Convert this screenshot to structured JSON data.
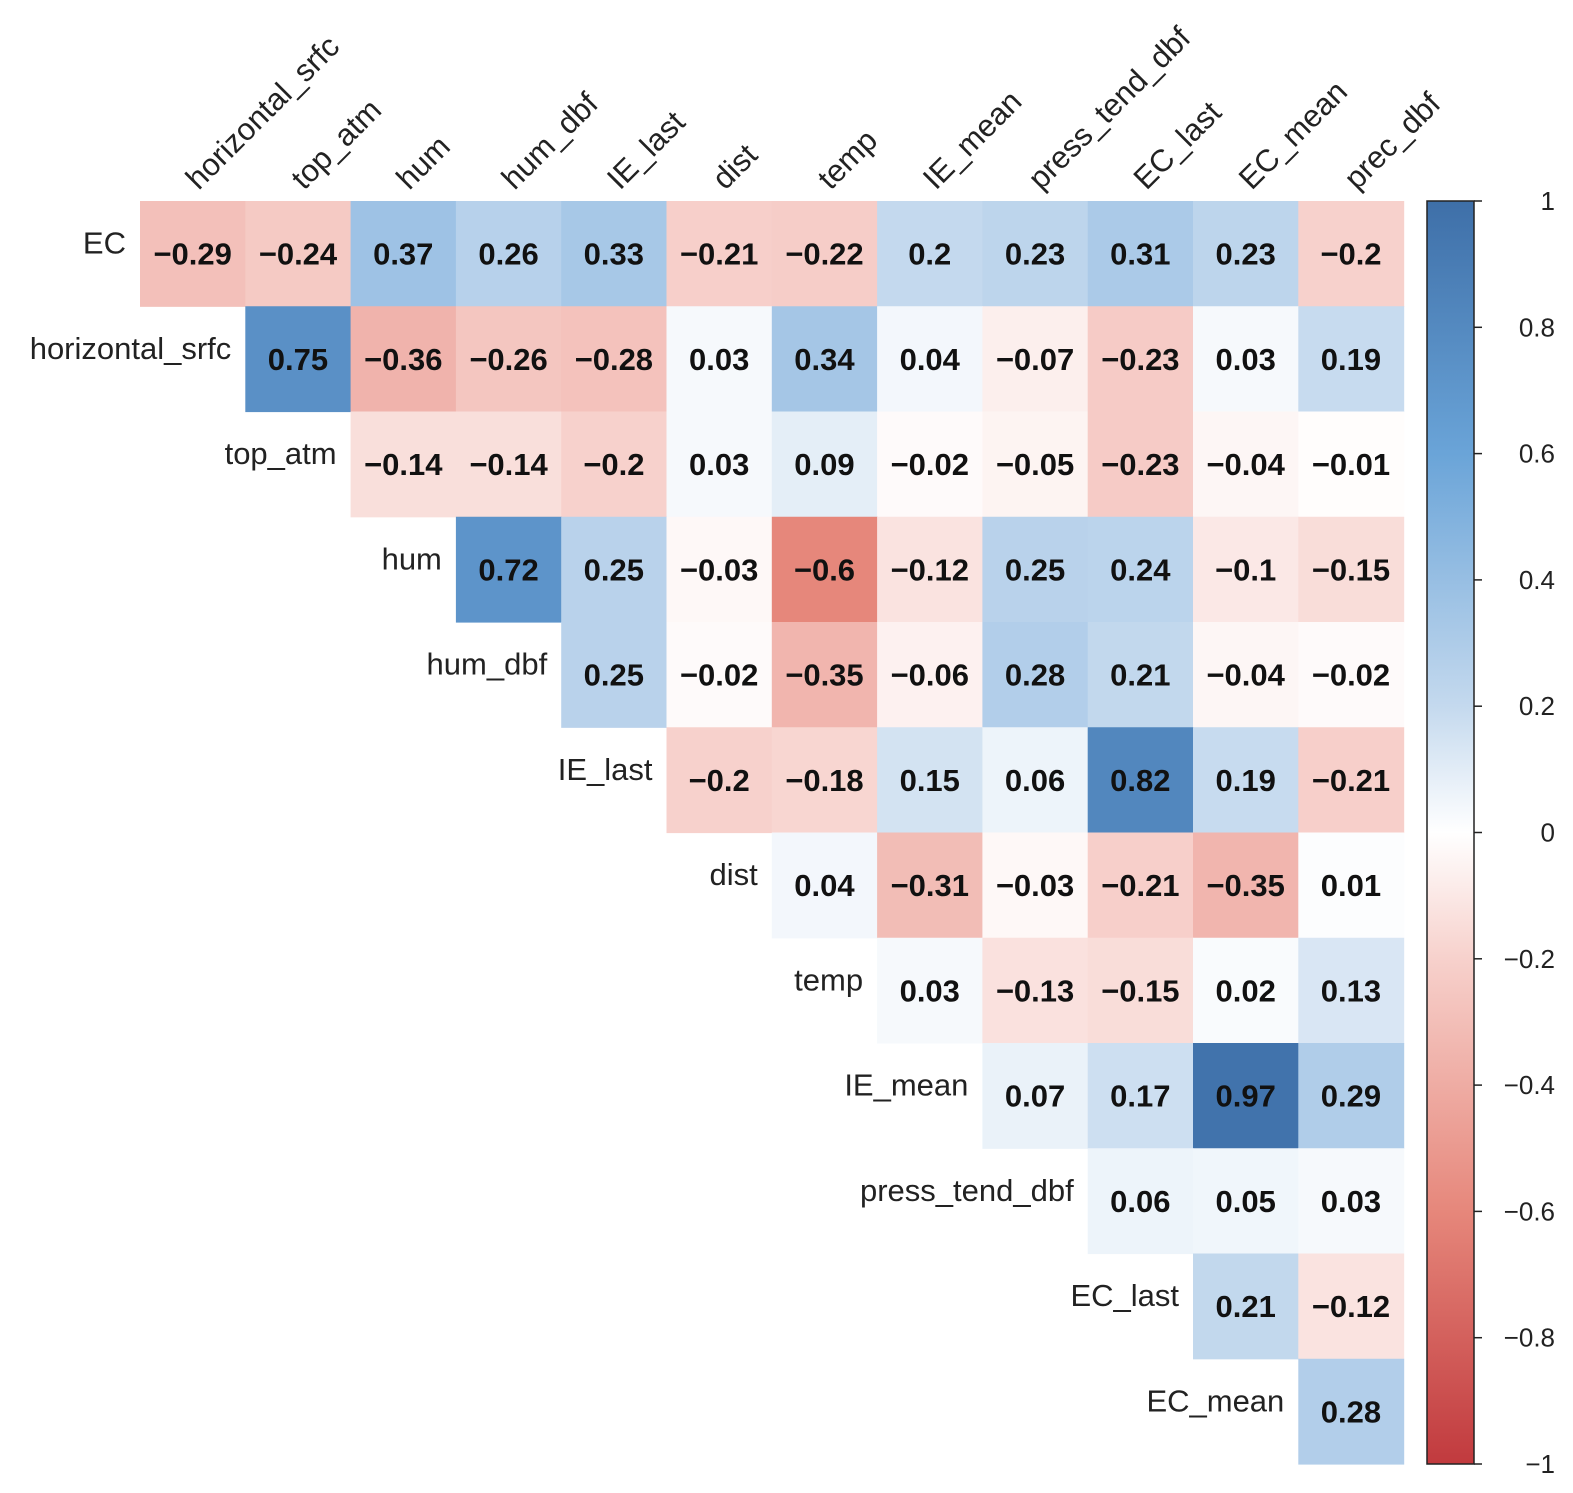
{
  "chart_data": {
    "type": "heatmap",
    "title": "",
    "layout": "upper-triangle correlation matrix",
    "columns": [
      "horizontal_srfc",
      "top_atm",
      "hum",
      "hum_dbf",
      "IE_last",
      "dist",
      "temp",
      "IE_mean",
      "press_tend_dbf",
      "EC_last",
      "EC_mean",
      "prec_dbf"
    ],
    "rows": [
      {
        "label": "EC",
        "start_col": 0,
        "values": [
          -0.29,
          -0.24,
          0.37,
          0.26,
          0.33,
          -0.21,
          -0.22,
          0.2,
          0.23,
          0.31,
          0.23,
          -0.2
        ],
        "texts": [
          "−0.29",
          "−0.24",
          "0.37",
          "0.26",
          "0.33",
          "−0.21",
          "−0.22",
          "0.2",
          "0.23",
          "0.31",
          "0.23",
          "−0.2"
        ]
      },
      {
        "label": "horizontal_srfc",
        "start_col": 1,
        "values": [
          0.75,
          -0.36,
          -0.26,
          -0.28,
          0.03,
          0.34,
          0.04,
          -0.07,
          -0.23,
          0.03,
          0.19
        ],
        "texts": [
          "0.75",
          "−0.36",
          "−0.26",
          "−0.28",
          "0.03",
          "0.34",
          "0.04",
          "−0.07",
          "−0.23",
          "0.03",
          "0.19"
        ]
      },
      {
        "label": "top_atm",
        "start_col": 2,
        "values": [
          -0.14,
          -0.14,
          -0.2,
          0.03,
          0.09,
          -0.02,
          -0.05,
          -0.23,
          -0.04,
          -0.01
        ],
        "texts": [
          "−0.14",
          "−0.14",
          "−0.2",
          "0.03",
          "0.09",
          "−0.02",
          "−0.05",
          "−0.23",
          "−0.04",
          "−0.01"
        ]
      },
      {
        "label": "hum",
        "start_col": 3,
        "values": [
          0.72,
          0.25,
          -0.03,
          -0.6,
          -0.12,
          0.25,
          0.24,
          -0.1,
          -0.15
        ],
        "texts": [
          "0.72",
          "0.25",
          "−0.03",
          "−0.6",
          "−0.12",
          "0.25",
          "0.24",
          "−0.1",
          "−0.15"
        ]
      },
      {
        "label": "hum_dbf",
        "start_col": 4,
        "values": [
          0.25,
          -0.02,
          -0.35,
          -0.06,
          0.28,
          0.21,
          -0.04,
          -0.02
        ],
        "texts": [
          "0.25",
          "−0.02",
          "−0.35",
          "−0.06",
          "0.28",
          "0.21",
          "−0.04",
          "−0.02"
        ]
      },
      {
        "label": "IE_last",
        "start_col": 5,
        "values": [
          -0.2,
          -0.18,
          0.15,
          0.06,
          0.82,
          0.19,
          -0.21
        ],
        "texts": [
          "−0.2",
          "−0.18",
          "0.15",
          "0.06",
          "0.82",
          "0.19",
          "−0.21"
        ]
      },
      {
        "label": "dist",
        "start_col": 6,
        "values": [
          0.04,
          -0.31,
          -0.03,
          -0.21,
          -0.35,
          0.01
        ],
        "texts": [
          "0.04",
          "−0.31",
          "−0.03",
          "−0.21",
          "−0.35",
          "0.01"
        ]
      },
      {
        "label": "temp",
        "start_col": 7,
        "values": [
          0.03,
          -0.13,
          -0.15,
          0.02,
          0.13
        ],
        "texts": [
          "0.03",
          "−0.13",
          "−0.15",
          "0.02",
          "0.13"
        ]
      },
      {
        "label": "IE_mean",
        "start_col": 8,
        "values": [
          0.07,
          0.17,
          0.97,
          0.29
        ],
        "texts": [
          "0.07",
          "0.17",
          "0.97",
          "0.29"
        ]
      },
      {
        "label": "press_tend_dbf",
        "start_col": 9,
        "values": [
          0.06,
          0.05,
          0.03
        ],
        "texts": [
          "0.06",
          "0.05",
          "0.03"
        ]
      },
      {
        "label": "EC_last",
        "start_col": 10,
        "values": [
          0.21,
          -0.12
        ],
        "texts": [
          "0.21",
          "−0.12"
        ]
      },
      {
        "label": "EC_mean",
        "start_col": 11,
        "values": [
          0.28
        ],
        "texts": [
          "0.28"
        ]
      }
    ],
    "color_scale": {
      "min": -1,
      "max": 1,
      "colors": {
        "neg": "#c13a3e",
        "mid": "#ffffff",
        "pos": "#3e6fa8"
      },
      "ticks": [
        1,
        0.8,
        0.6,
        0.4,
        0.2,
        0,
        -0.2,
        -0.4,
        -0.6,
        -0.8,
        -1
      ],
      "tick_labels": [
        "1",
        "0.8",
        "0.6",
        "0.4",
        "0.2",
        "0",
        "−0.2",
        "−0.4",
        "−0.6",
        "−0.8",
        "−1"
      ]
    }
  }
}
